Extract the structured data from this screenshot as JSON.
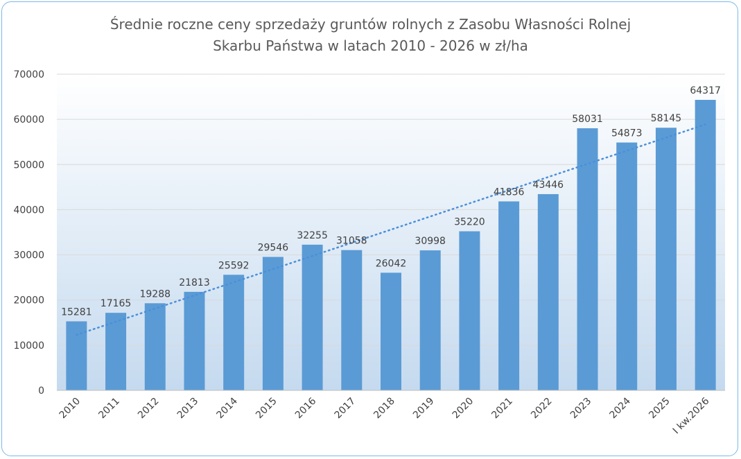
{
  "chart_data": {
    "type": "bar",
    "title_lines": [
      "Średnie roczne ceny sprzedaży gruntów rolnych z Zasobu Własności Rolnej",
      "Skarbu Państwa w latach 2010 - 2026 w zł/ha"
    ],
    "categories": [
      "2010",
      "2011",
      "2012",
      "2013",
      "2014",
      "2015",
      "2016",
      "2017",
      "2018",
      "2019",
      "2020",
      "2021",
      "2022",
      "2023",
      "2024",
      "2025",
      "I kw.2026"
    ],
    "values": [
      15281,
      17165,
      19288,
      21813,
      25592,
      29546,
      32255,
      31058,
      26042,
      30998,
      35220,
      41836,
      43446,
      58031,
      54873,
      58145,
      64317
    ],
    "ylim": [
      0,
      70000
    ],
    "yticks": [
      0,
      10000,
      20000,
      30000,
      40000,
      50000,
      60000,
      70000
    ],
    "grid": true,
    "trendline": "linear, dotted",
    "colors": {
      "bar": "#5b9bd5",
      "trend": "#4a90d9",
      "border": "#7cb9e8",
      "plot_top": "#ffffff",
      "plot_bottom": "#c5daef",
      "grid": "#d9d9d9"
    }
  }
}
